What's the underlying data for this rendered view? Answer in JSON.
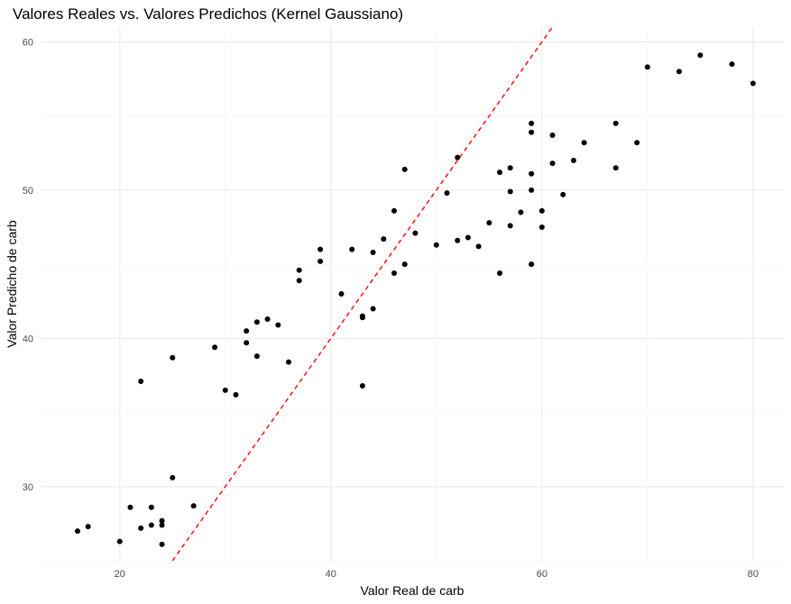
{
  "chart_data": {
    "type": "scatter",
    "title": "Valores Reales vs. Valores Predichos (Kernel Gaussiano)",
    "xlabel": "Valor Real de carb",
    "ylabel": "Valor Predicho de carb",
    "xlim": [
      12.5,
      83
    ],
    "ylim": [
      25,
      61
    ],
    "x_ticks": [
      20,
      40,
      60,
      80
    ],
    "y_ticks": [
      30,
      40,
      50,
      60
    ],
    "grid": true,
    "point_color": "#000000",
    "reference_line": {
      "slope": 1,
      "intercept": 0,
      "color": "#ff0000",
      "style": "dashed"
    },
    "points": [
      [
        16,
        27.0
      ],
      [
        17,
        27.3
      ],
      [
        20,
        26.3
      ],
      [
        21,
        28.6
      ],
      [
        22,
        27.2
      ],
      [
        22,
        37.1
      ],
      [
        23,
        27.4
      ],
      [
        23,
        28.6
      ],
      [
        24,
        27.7
      ],
      [
        24,
        27.4
      ],
      [
        24,
        26.1
      ],
      [
        25,
        30.6
      ],
      [
        25,
        38.7
      ],
      [
        27,
        28.7
      ],
      [
        29,
        39.4
      ],
      [
        30,
        36.5
      ],
      [
        31,
        36.2
      ],
      [
        32,
        40.5
      ],
      [
        32,
        39.7
      ],
      [
        33,
        41.1
      ],
      [
        33,
        38.8
      ],
      [
        34,
        41.3
      ],
      [
        35,
        40.9
      ],
      [
        36,
        38.4
      ],
      [
        37,
        44.6
      ],
      [
        37,
        43.9
      ],
      [
        39,
        46.0
      ],
      [
        39,
        45.2
      ],
      [
        41,
        43.0
      ],
      [
        42,
        46.0
      ],
      [
        43,
        41.5
      ],
      [
        43,
        41.4
      ],
      [
        43,
        36.8
      ],
      [
        44,
        45.8
      ],
      [
        44,
        42.0
      ],
      [
        45,
        46.7
      ],
      [
        46,
        48.6
      ],
      [
        46,
        44.4
      ],
      [
        47,
        51.4
      ],
      [
        47,
        45.0
      ],
      [
        48,
        47.1
      ],
      [
        50,
        46.3
      ],
      [
        51,
        49.8
      ],
      [
        52,
        52.2
      ],
      [
        52,
        46.6
      ],
      [
        53,
        46.8
      ],
      [
        54,
        46.2
      ],
      [
        55,
        47.8
      ],
      [
        56,
        51.2
      ],
      [
        56,
        44.4
      ],
      [
        57,
        51.5
      ],
      [
        57,
        49.9
      ],
      [
        57,
        47.6
      ],
      [
        58,
        48.5
      ],
      [
        59,
        54.5
      ],
      [
        59,
        53.9
      ],
      [
        59,
        51.1
      ],
      [
        59,
        50.0
      ],
      [
        59,
        45.0
      ],
      [
        60,
        48.6
      ],
      [
        60,
        47.5
      ],
      [
        61,
        53.7
      ],
      [
        61,
        51.8
      ],
      [
        62,
        49.7
      ],
      [
        63,
        52.0
      ],
      [
        64,
        53.2
      ],
      [
        67,
        54.5
      ],
      [
        67,
        51.5
      ],
      [
        69,
        53.2
      ],
      [
        70,
        58.3
      ],
      [
        73,
        58.0
      ],
      [
        75,
        59.1
      ],
      [
        78,
        58.5
      ],
      [
        80,
        57.2
      ]
    ]
  }
}
